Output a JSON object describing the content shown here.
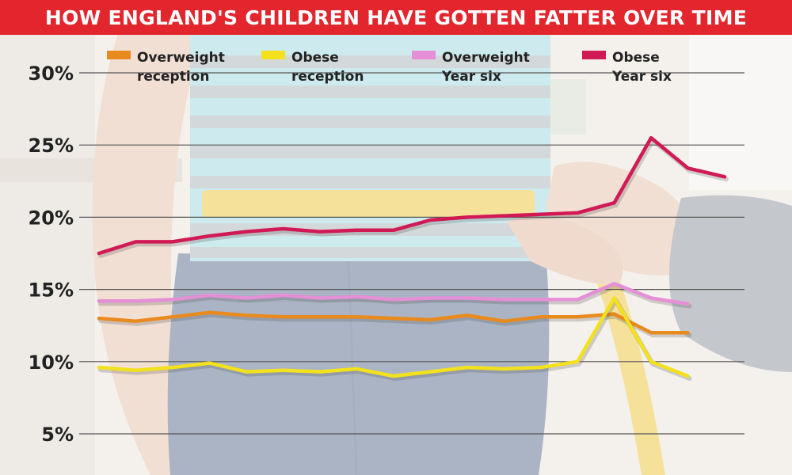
{
  "chart_data": {
    "type": "line",
    "title": "HOW ENGLAND'S CHILDREN HAVE GOTTEN FATTER OVER TIME",
    "xlabel": "",
    "ylabel": "",
    "y_tick_labels": [
      "30%",
      "25%",
      "20%",
      "15%",
      "10%",
      "5%"
    ],
    "y_ticks": [
      30,
      25,
      20,
      15,
      10,
      5
    ],
    "ylim": [
      4,
      31
    ],
    "grid": true,
    "legend_position": "top",
    "x": [
      0,
      1,
      2,
      3,
      4,
      5,
      6,
      7,
      8,
      9,
      10,
      11,
      12,
      13,
      14,
      15,
      16,
      17
    ],
    "series": [
      {
        "name": "Overweight reception",
        "legend_lines": [
          "Overweight",
          "reception"
        ],
        "color": "#e98a1e",
        "values": [
          13.0,
          12.8,
          13.1,
          13.4,
          13.2,
          13.1,
          13.1,
          13.1,
          13.0,
          12.9,
          13.2,
          12.8,
          13.1,
          13.1,
          13.3,
          12.0,
          12.0,
          null
        ]
      },
      {
        "name": "Obese reception",
        "legend_lines": [
          "Obese",
          "reception"
        ],
        "color": "#f2e11c",
        "values": [
          9.6,
          9.4,
          9.6,
          9.9,
          9.3,
          9.4,
          9.3,
          9.5,
          9.0,
          9.3,
          9.6,
          9.5,
          9.6,
          10.0,
          14.4,
          10.0,
          9.0,
          null
        ]
      },
      {
        "name": "Overweight Year six",
        "legend_lines": [
          "Overweight",
          "Year six"
        ],
        "color": "#e58fd6",
        "values": [
          14.2,
          14.2,
          14.3,
          14.6,
          14.4,
          14.6,
          14.4,
          14.5,
          14.3,
          14.4,
          14.4,
          14.3,
          14.3,
          14.3,
          15.4,
          14.4,
          14.0,
          null
        ]
      },
      {
        "name": "Obese Year six",
        "legend_lines": [
          "Obese",
          "Year six"
        ],
        "color": "#d11a55",
        "values": [
          17.5,
          18.3,
          18.3,
          18.7,
          19.0,
          19.2,
          19.0,
          19.1,
          19.1,
          19.8,
          20.0,
          20.1,
          20.2,
          20.3,
          21.0,
          25.5,
          23.4,
          22.8
        ]
      }
    ]
  },
  "colors": {
    "title_background": "#e3262e",
    "title_text": "#ffffff",
    "gridline": "#555555"
  }
}
